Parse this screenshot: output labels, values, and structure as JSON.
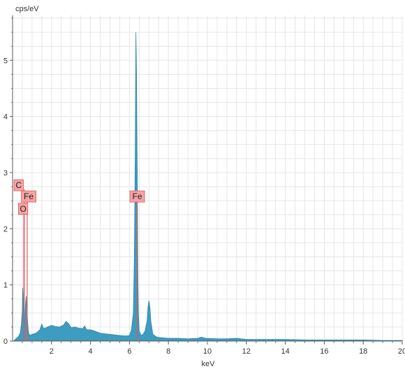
{
  "chart_data": {
    "type": "area",
    "title": "",
    "xlabel": "keV",
    "ylabel": "cps/eV",
    "xlim": [
      0,
      20
    ],
    "ylim": [
      0,
      5.8
    ],
    "x_ticks": [
      2,
      4,
      6,
      8,
      10,
      12,
      14,
      16,
      18,
      20
    ],
    "y_ticks": [
      0,
      1,
      2,
      3,
      4,
      5
    ],
    "grid": true,
    "colors": {
      "fill": "#3d9cbf",
      "stroke": "#2b87aa",
      "marker": "#e05a5a",
      "label_bg": "#f4a3a3"
    },
    "series": [
      {
        "x": [
          0.05,
          0.2,
          0.3,
          0.4,
          0.45,
          0.5,
          0.52,
          0.55,
          0.58,
          0.62,
          0.66,
          0.7,
          0.74,
          0.78,
          0.82,
          0.9,
          1.0,
          1.2,
          1.4,
          1.5,
          1.6,
          1.8,
          2.0,
          2.2,
          2.4,
          2.6,
          2.75,
          2.9,
          3.0,
          3.2,
          3.4,
          3.6,
          3.7,
          3.8,
          4.0,
          4.2,
          4.5,
          5.0,
          5.5,
          5.8,
          6.0,
          6.1,
          6.2,
          6.25,
          6.3,
          6.33,
          6.36,
          6.4,
          6.43,
          6.46,
          6.5,
          6.6,
          6.7,
          6.8,
          6.9,
          6.95,
          7.0,
          7.05,
          7.1,
          7.2,
          7.4,
          7.6,
          8.0,
          8.5,
          9.0,
          9.5,
          9.7,
          9.9,
          10.5,
          11.0,
          11.5,
          12.0,
          13.0,
          14.0,
          15.0,
          16.0,
          17.0,
          18.0,
          19.0,
          20.0
        ],
        "y": [
          0.0,
          0.05,
          0.08,
          0.15,
          0.3,
          0.55,
          0.95,
          0.7,
          0.25,
          0.3,
          0.65,
          0.8,
          0.55,
          0.3,
          0.14,
          0.1,
          0.12,
          0.14,
          0.2,
          0.3,
          0.22,
          0.25,
          0.28,
          0.26,
          0.25,
          0.28,
          0.35,
          0.3,
          0.24,
          0.25,
          0.23,
          0.22,
          0.27,
          0.2,
          0.2,
          0.18,
          0.14,
          0.12,
          0.1,
          0.09,
          0.1,
          0.2,
          0.5,
          1.5,
          3.5,
          5.5,
          4.8,
          3.0,
          1.2,
          0.5,
          0.18,
          0.1,
          0.12,
          0.18,
          0.35,
          0.6,
          0.72,
          0.6,
          0.35,
          0.12,
          0.07,
          0.06,
          0.05,
          0.05,
          0.04,
          0.05,
          0.07,
          0.05,
          0.04,
          0.04,
          0.05,
          0.03,
          0.03,
          0.03,
          0.02,
          0.02,
          0.02,
          0.02,
          0.01,
          0.01
        ]
      }
    ],
    "peak_labels": [
      {
        "text": "C",
        "x": 0.28,
        "y": 2.7
      },
      {
        "text": "Fe",
        "x": 0.7,
        "y": 2.5
      },
      {
        "text": "O",
        "x": 0.52,
        "y": 2.28
      },
      {
        "text": "Fe",
        "x": 6.4,
        "y": 2.5
      }
    ]
  }
}
